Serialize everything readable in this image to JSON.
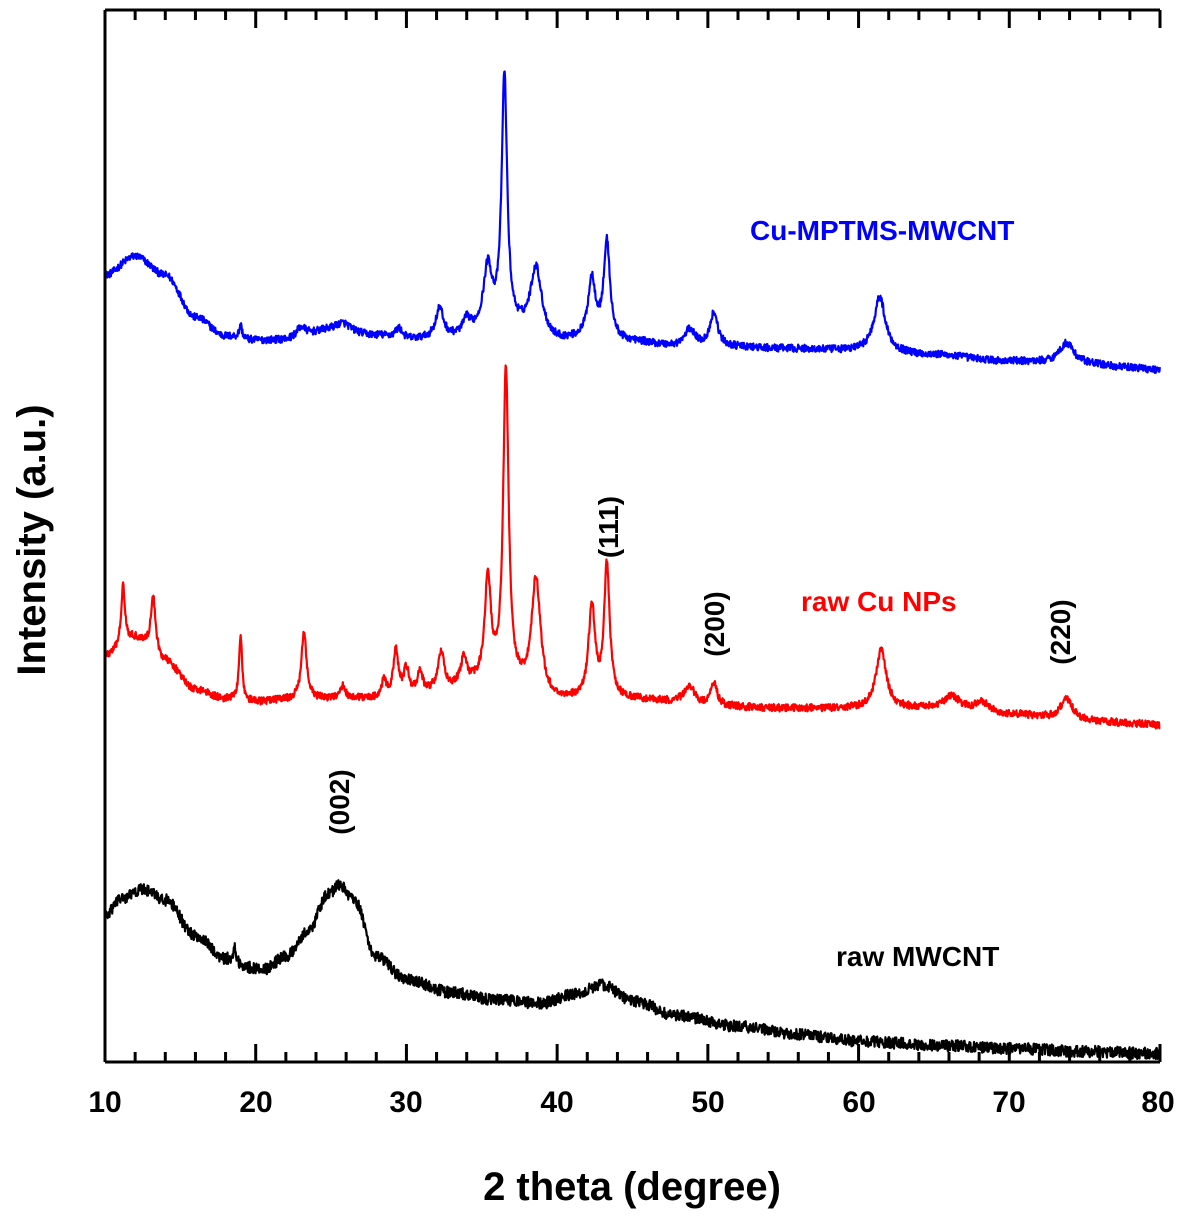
{
  "chart_data": {
    "type": "line",
    "title": "",
    "xlabel": "2 theta (degree)",
    "ylabel": "Intensity (a.u.)",
    "xlim": [
      10,
      80
    ],
    "xticks": [
      "10",
      "20",
      "30",
      "40",
      "50",
      "60",
      "70",
      "80"
    ],
    "ylim": [
      0,
      100
    ],
    "yticks": false,
    "grid": false,
    "legend": "inline labels",
    "series": [
      {
        "name": "Cu-MPTMS-MWCNT",
        "color": "#0000ff",
        "base": [
          [
            10,
            74.8
          ],
          [
            12,
            76.6
          ],
          [
            14,
            74.8
          ],
          [
            16,
            70.8
          ],
          [
            18,
            69.0
          ],
          [
            20,
            68.6
          ],
          [
            22,
            68.6
          ],
          [
            25,
            69.5
          ],
          [
            28,
            69.0
          ],
          [
            30,
            68.6
          ],
          [
            33,
            68.8
          ],
          [
            35,
            69.2
          ],
          [
            37,
            69.4
          ],
          [
            40,
            68.4
          ],
          [
            42,
            68.6
          ],
          [
            45,
            68.4
          ],
          [
            48,
            68.0
          ],
          [
            50,
            68.0
          ],
          [
            55,
            67.8
          ],
          [
            60,
            67.6
          ],
          [
            65,
            67.2
          ],
          [
            70,
            66.6
          ],
          [
            75,
            66.3
          ],
          [
            78,
            66.0
          ],
          [
            80,
            65.8
          ]
        ],
        "peaks": [
          [
            19.0,
            1.2,
            0.12
          ],
          [
            23.0,
            1.0,
            0.4
          ],
          [
            25.8,
            0.8,
            0.6
          ],
          [
            29.5,
            1.0,
            0.3
          ],
          [
            32.2,
            2.8,
            0.3
          ],
          [
            34.0,
            1.3,
            0.3
          ],
          [
            35.4,
            6.0,
            0.35
          ],
          [
            36.5,
            24.0,
            0.22
          ],
          [
            38.6,
            6.5,
            0.45
          ],
          [
            42.3,
            5.6,
            0.3
          ],
          [
            43.3,
            9.2,
            0.25
          ],
          [
            48.8,
            1.6,
            0.4
          ],
          [
            50.4,
            3.2,
            0.3
          ],
          [
            61.4,
            5.2,
            0.45
          ],
          [
            73.8,
            2.0,
            0.6
          ]
        ],
        "noise": 0.35
      },
      {
        "name": "raw Cu NPs",
        "color": "#ff0000",
        "base": [
          [
            10,
            38.6
          ],
          [
            12,
            40.2
          ],
          [
            14,
            38.0
          ],
          [
            16,
            35.4
          ],
          [
            18,
            34.5
          ],
          [
            20,
            34.2
          ],
          [
            22,
            34.4
          ],
          [
            25,
            34.5
          ],
          [
            28,
            34.5
          ],
          [
            30,
            34.8
          ],
          [
            33,
            35.4
          ],
          [
            35,
            35.8
          ],
          [
            37,
            35.4
          ],
          [
            40,
            34.3
          ],
          [
            42,
            34.4
          ],
          [
            45,
            34.4
          ],
          [
            48,
            34.2
          ],
          [
            50,
            33.8
          ],
          [
            55,
            33.6
          ],
          [
            60,
            33.6
          ],
          [
            65,
            33.6
          ],
          [
            70,
            33.0
          ],
          [
            75,
            32.4
          ],
          [
            78,
            32.2
          ],
          [
            80,
            32.0
          ]
        ],
        "peaks": [
          [
            11.2,
            5.8,
            0.15
          ],
          [
            13.2,
            5.4,
            0.2
          ],
          [
            19.0,
            6.3,
            0.12
          ],
          [
            23.2,
            6.5,
            0.2
          ],
          [
            25.8,
            1.2,
            0.2
          ],
          [
            28.5,
            1.5,
            0.2
          ],
          [
            29.3,
            4.2,
            0.2
          ],
          [
            30.0,
            2.4,
            0.2
          ],
          [
            30.9,
            2.0,
            0.2
          ],
          [
            32.3,
            3.4,
            0.25
          ],
          [
            33.8,
            2.6,
            0.25
          ],
          [
            35.4,
            9.8,
            0.25
          ],
          [
            36.6,
            30.0,
            0.22
          ],
          [
            38.6,
            11.0,
            0.35
          ],
          [
            42.3,
            8.8,
            0.25
          ],
          [
            43.3,
            12.6,
            0.22
          ],
          [
            48.8,
            1.6,
            0.4
          ],
          [
            50.4,
            2.2,
            0.25
          ],
          [
            61.5,
            5.6,
            0.4
          ],
          [
            66.2,
            1.2,
            0.6
          ],
          [
            68.2,
            1.0,
            0.6
          ],
          [
            73.8,
            2.0,
            0.5
          ]
        ],
        "noise": 0.35
      },
      {
        "name": "raw MWCNT",
        "color": "#000000",
        "base": [
          [
            10,
            13.8
          ],
          [
            11,
            15.5
          ],
          [
            12.5,
            16.4
          ],
          [
            14,
            15.4
          ],
          [
            16,
            12.0
          ],
          [
            18,
            9.8
          ],
          [
            19.5,
            9.0
          ],
          [
            20.5,
            8.8
          ],
          [
            22,
            10.0
          ],
          [
            23.5,
            12.5
          ],
          [
            24.8,
            16.0
          ],
          [
            25.6,
            16.8
          ],
          [
            26.5,
            15.5
          ],
          [
            28,
            10.0
          ],
          [
            30,
            7.8
          ],
          [
            33,
            6.6
          ],
          [
            36,
            5.9
          ],
          [
            39,
            5.6
          ],
          [
            41,
            6.4
          ],
          [
            43,
            7.3
          ],
          [
            45,
            5.8
          ],
          [
            48,
            4.4
          ],
          [
            52,
            3.4
          ],
          [
            56,
            2.6
          ],
          [
            60,
            2.0
          ],
          [
            65,
            1.6
          ],
          [
            70,
            1.3
          ],
          [
            75,
            1.0
          ],
          [
            80,
            0.8
          ]
        ],
        "peaks": [
          [
            18.6,
            1.3,
            0.12
          ]
        ],
        "noise": 0.55
      }
    ],
    "annotations": {
      "series_labels": {
        "blue": "Cu-MPTMS-MWCNT",
        "red": "raw Cu NPs",
        "black": "raw MWCNT"
      },
      "peak_labels": {
        "p002": "(002)",
        "p111": "(111)",
        "p200": "(200)",
        "p220": "(220)"
      }
    }
  }
}
